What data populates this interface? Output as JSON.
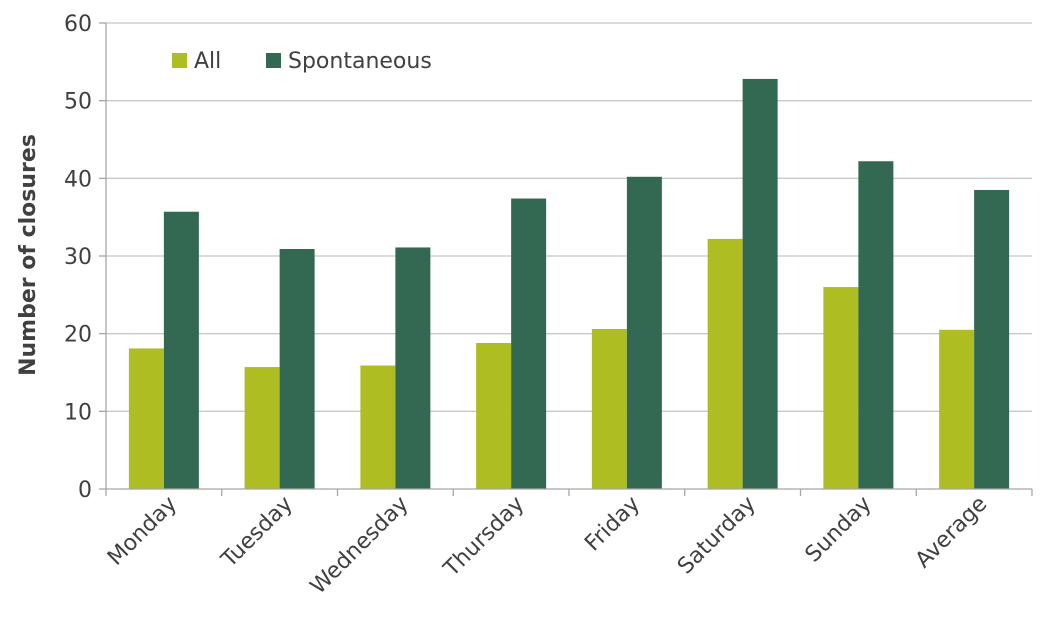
{
  "chart_data": {
    "type": "bar",
    "title": "",
    "xlabel": "",
    "ylabel": "Number of closures",
    "ylim": [
      0,
      60
    ],
    "yticks": [
      0,
      10,
      20,
      30,
      40,
      50,
      60
    ],
    "grid": true,
    "legend_position": "top-left",
    "categories": [
      "Monday",
      "Tuesday",
      "Wednesday",
      "Thursday",
      "Friday",
      "Saturday",
      "Sunday",
      "Average"
    ],
    "series": [
      {
        "name": "All",
        "color": "#aebd22",
        "values": [
          18.1,
          15.7,
          15.9,
          18.8,
          20.6,
          32.2,
          26.0,
          20.5
        ]
      },
      {
        "name": "Spontaneous",
        "color": "#336952",
        "values": [
          35.7,
          30.9,
          31.1,
          37.4,
          40.2,
          52.8,
          42.2,
          38.5
        ]
      }
    ]
  }
}
